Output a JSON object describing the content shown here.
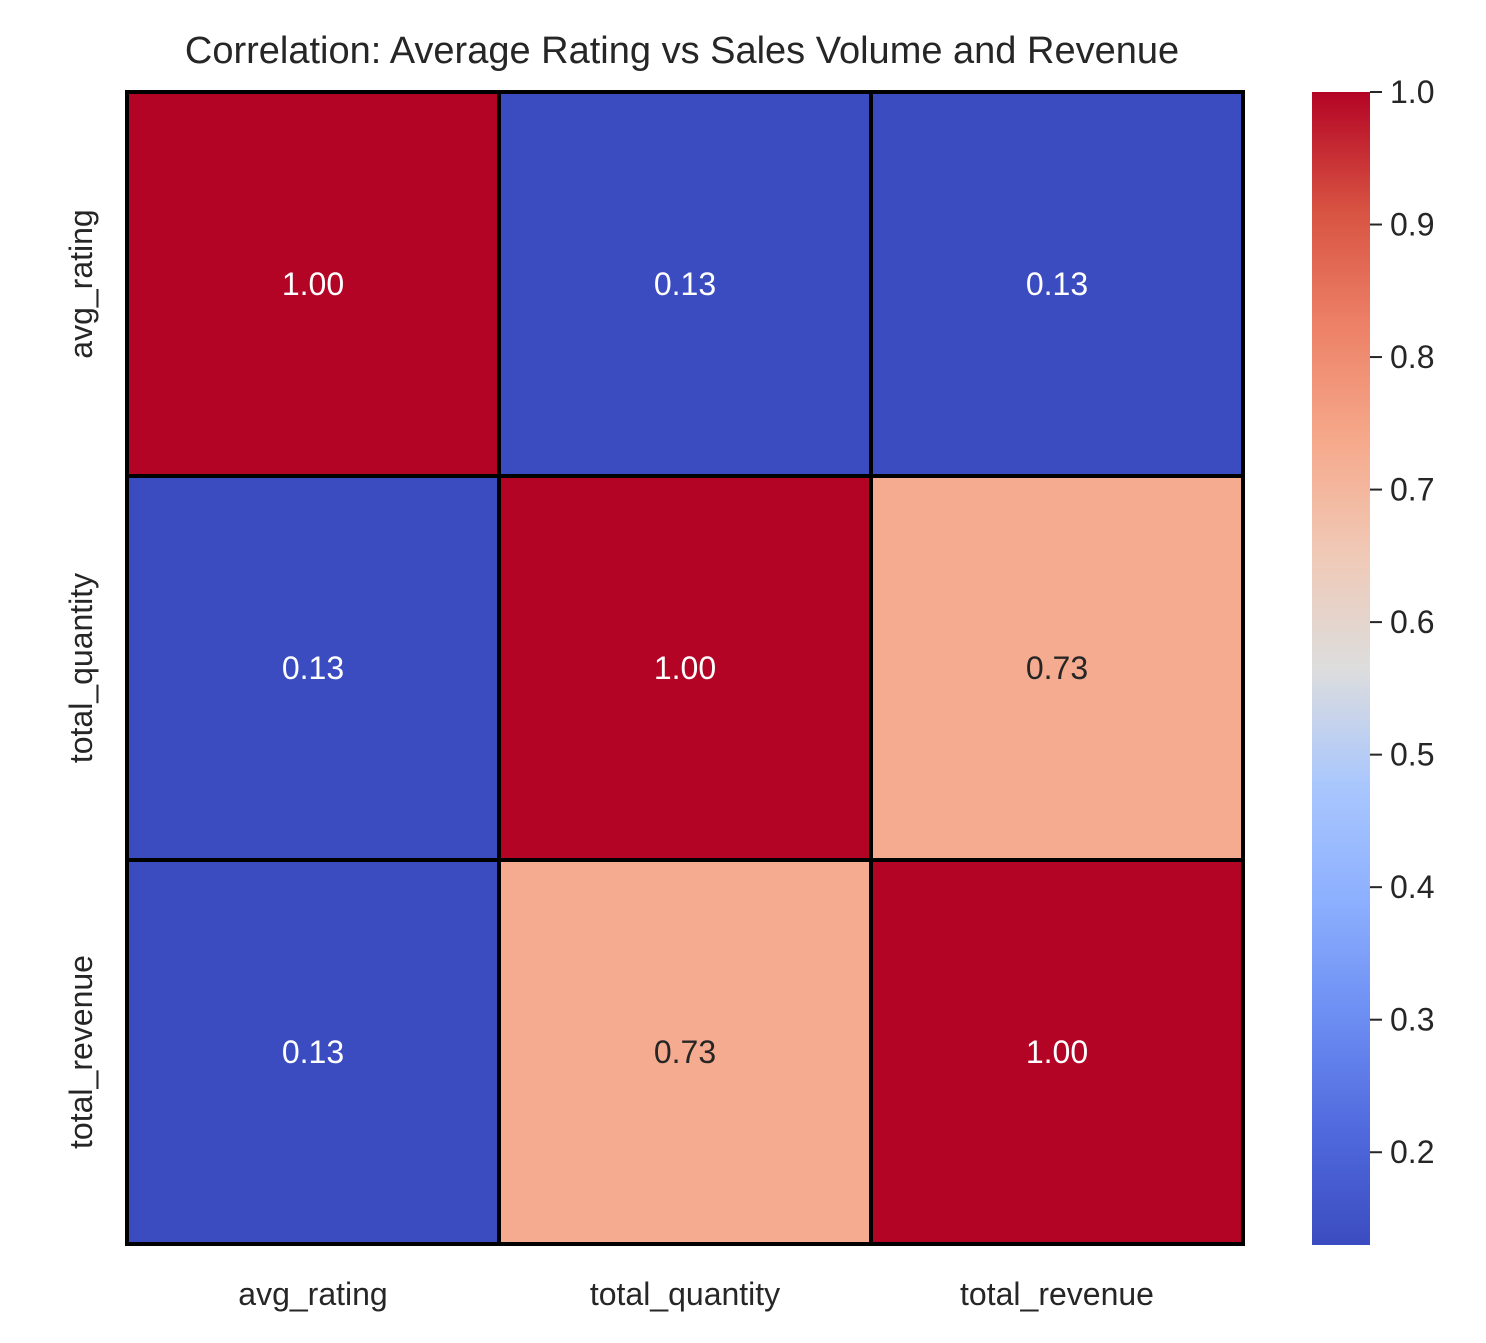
{
  "chart_data": {
    "type": "heatmap",
    "title": "Correlation: Average Rating vs Sales Volume and Revenue",
    "x_labels": [
      "avg_rating",
      "total_quantity",
      "total_revenue"
    ],
    "y_labels": [
      "avg_rating",
      "total_quantity",
      "total_revenue"
    ],
    "values": [
      [
        1.0,
        0.13,
        0.13
      ],
      [
        0.13,
        1.0,
        0.73
      ],
      [
        0.13,
        0.73,
        1.0
      ]
    ],
    "value_labels": [
      [
        "1.00",
        "0.13",
        "0.13"
      ],
      [
        "0.13",
        "1.00",
        "0.73"
      ],
      [
        "0.13",
        "0.73",
        "1.00"
      ]
    ],
    "colormap": "coolwarm",
    "vmin": 0.13,
    "vmax": 1.0,
    "colorbar_ticks": [
      0.2,
      0.3,
      0.4,
      0.5,
      0.6,
      0.7,
      0.8,
      0.9,
      1.0
    ],
    "colorbar_tick_labels": [
      "0.2",
      "0.3",
      "0.4",
      "0.5",
      "0.6",
      "0.7",
      "0.8",
      "0.9",
      "1.0"
    ],
    "colorbar_placement": "right",
    "cell_border_color": "#000000",
    "colors": {
      "low": "#3b4cc0",
      "mid": "#dddddd",
      "high": "#b40426",
      "dark_text": "#262626",
      "light_text": "#ffffff"
    }
  }
}
